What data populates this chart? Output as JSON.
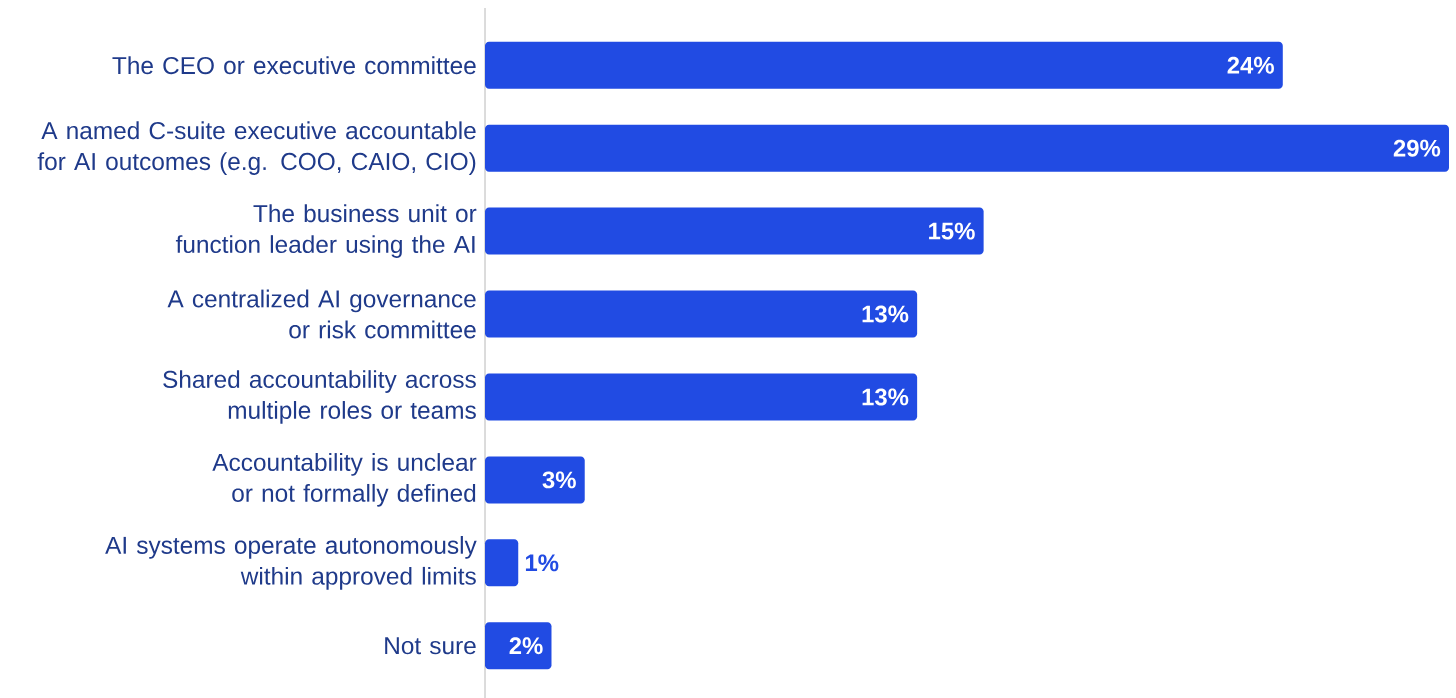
{
  "chart_data": {
    "type": "bar",
    "orientation": "horizontal",
    "categories": [
      "The CEO or executive committee",
      "A named C-suite executive accountable for AI outcomes (e.g. COO, CAIO, CIO)",
      "The business unit or function leader using the AI",
      "A centralized AI governance or risk committee",
      "Shared accountability across multiple roles or teams",
      "Accountability is unclear or not formally defined",
      "AI systems operate autonomously within approved limits",
      "Not sure"
    ],
    "values": [
      24,
      29,
      15,
      13,
      13,
      3,
      1,
      2
    ],
    "value_labels": [
      "24%",
      "29%",
      "15%",
      "13%",
      "13%",
      "3%",
      "1%",
      "2%"
    ],
    "color": "#214be3"
  }
}
